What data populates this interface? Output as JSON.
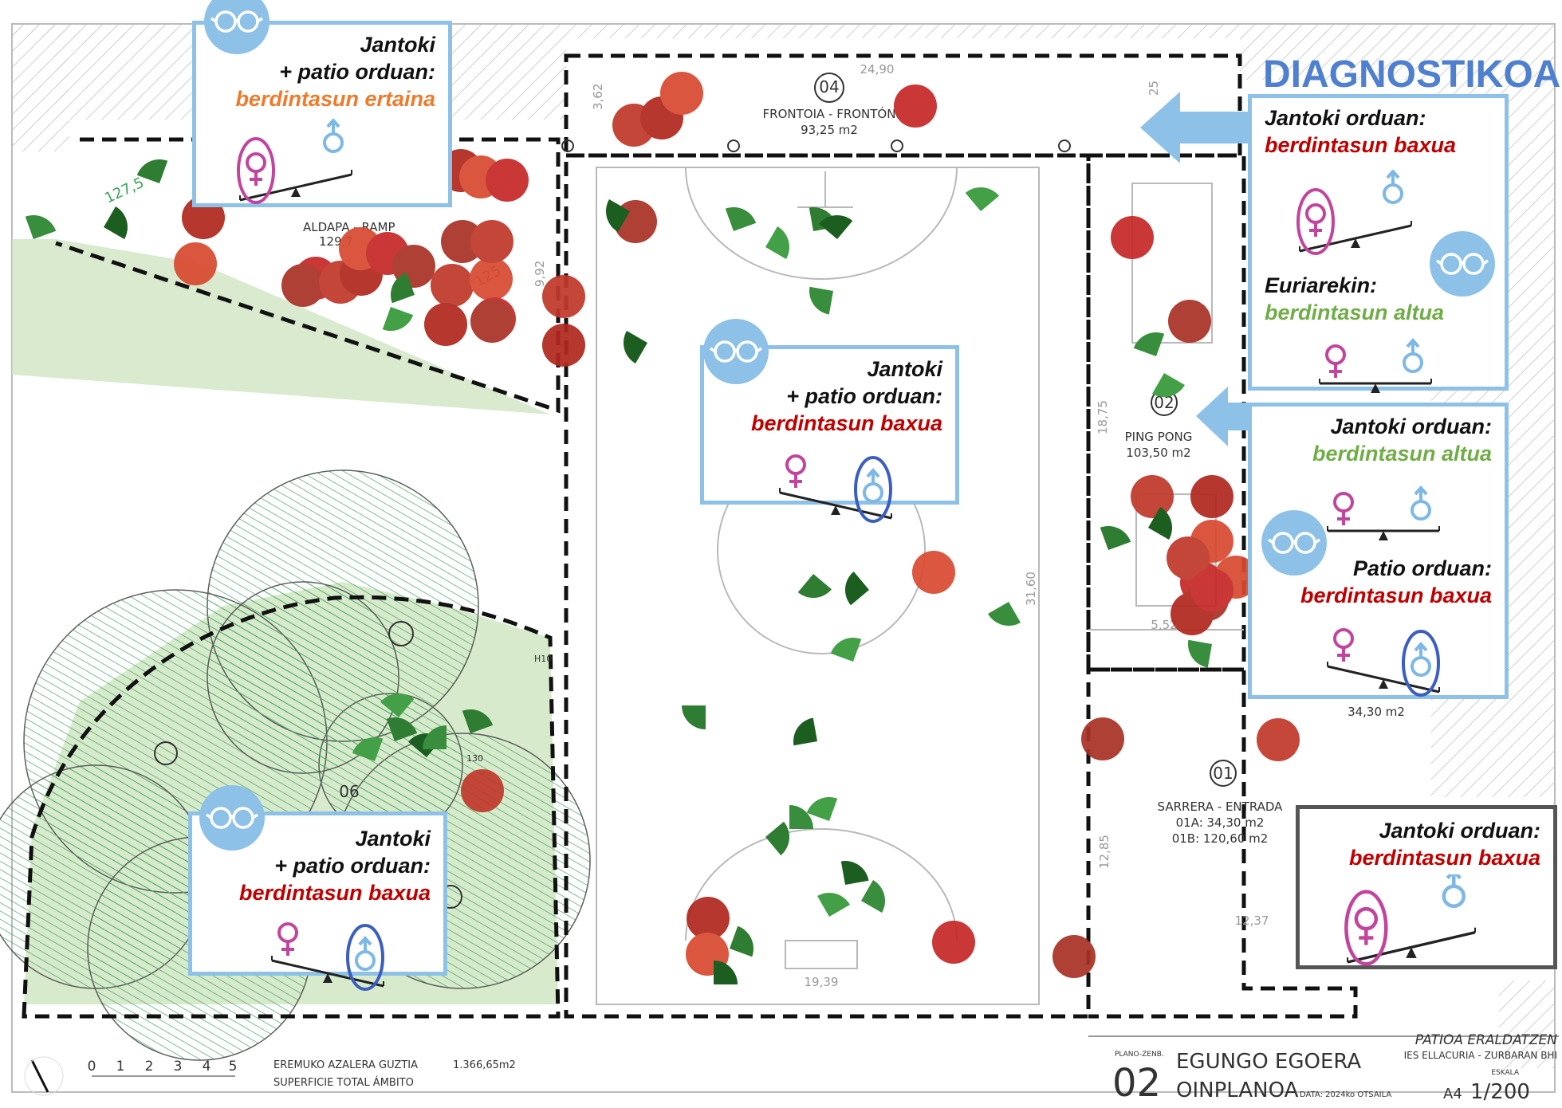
{
  "diagnosis_title": "DIAGNOSTIKOA",
  "zones": {
    "z04": {
      "number": "04",
      "name": "FRONTOIA - FRONTÓN",
      "area": "93,25 m2"
    },
    "z02": {
      "number": "02",
      "name": "PING PONG",
      "area": "103,50 m2"
    },
    "z01": {
      "number": "01",
      "name": "SARRERA - ENTRADA",
      "area_a": "01A: 34,30 m2",
      "area_b": "01B: 120,60 m2",
      "sub_area": "34,30 m2"
    },
    "z06": {
      "number": "06"
    },
    "z05": {
      "name": "ALDAPA - RAMP",
      "area": "129,7"
    }
  },
  "dimensions": [
    "24,90",
    "3,62",
    "25",
    "9,92",
    "18,75",
    "5,52",
    "31,60",
    "12,85",
    "12,37",
    "19,39",
    "127,5",
    "125",
    "130",
    "H10"
  ],
  "cards": {
    "c1": {
      "l1": "Jantoki",
      "l2": "+ patio orduan:",
      "l3": "berdintasun ertaina"
    },
    "c2": {
      "l1": "Jantoki",
      "l2": "+ patio orduan:",
      "l3": "berdintasun baxua"
    },
    "c3": {
      "l1": "Jantoki",
      "l2": "+ patio orduan:",
      "l3": "berdintasun baxua"
    },
    "c4": {
      "l1": "Jantoki orduan:",
      "l2": "berdintasun baxua",
      "l3": "Euriarekin:",
      "l4": "berdintasun altua"
    },
    "c5": {
      "l1": "Jantoki orduan:",
      "l2": "berdintasun altua",
      "l3": "Patio orduan:",
      "l4": "berdintasun baxua"
    },
    "c6": {
      "l1": "Jantoki orduan:",
      "l2": "berdintasun baxua"
    }
  },
  "footer": {
    "total_label_eu": "EREMUKO AZALERA GUZTIA",
    "total_label_es": "SUPERFICIE TOTAL ÁMBITO",
    "total_value": "1.366,65m2",
    "scale_ticks": [
      "0",
      "1",
      "2",
      "3",
      "4",
      "5"
    ],
    "plan_label": "PLANO-ZENB.",
    "plan_number": "02",
    "plan_title_1": "EGUNGO EGOERA",
    "plan_title_2": "OINPLANOA",
    "date": "DATA: 2024ko OTSAILA",
    "project": "PATIOA ERALDATZEN",
    "school": "IES ELLACURIA - ZURBARAN BHI",
    "scale_label": "ESKALA",
    "paper": "A4",
    "scale": "1/200"
  },
  "colors": {
    "card_border": "#8ec1e8",
    "female_symbol": "#c2459d",
    "male_symbol": "#7db8e6",
    "girl_marker": "#c0392b",
    "boy_marker": "#2e7d32",
    "medium": "#ee7b2c",
    "low": "#c00000",
    "high": "#70ad47",
    "title": "#4f7fcf"
  },
  "icons": [
    "glasses-icon",
    "female-symbol-icon",
    "male-symbol-icon",
    "seesaw-icon",
    "arrow-left-icon",
    "north-arrow-icon"
  ]
}
